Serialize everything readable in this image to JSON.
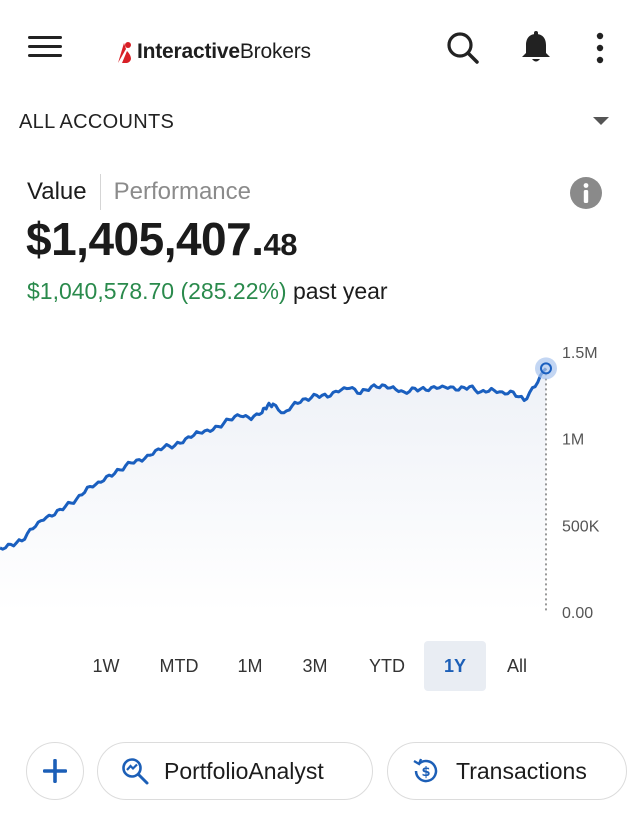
{
  "header": {
    "brand_bold": "Interactive",
    "brand_regular": "Brokers",
    "icons": [
      "menu-icon",
      "ib-logo-mark",
      "search-icon",
      "bell-icon",
      "kebab-menu-icon"
    ],
    "brand_color": "#d81f26"
  },
  "account_selector": {
    "label": "ALL ACCOUNTS"
  },
  "value_tabs": {
    "value": "Value",
    "performance": "Performance",
    "selected": "Value"
  },
  "portfolio": {
    "value_main": "$1,405,407.",
    "value_cents": "48",
    "change_text": "$1,040,578.70 (285.22%)",
    "change_suffix": "past year",
    "change_color": "#2a8a4c"
  },
  "chart_data": {
    "type": "area",
    "ylim": [
      0,
      1500000
    ],
    "y_tick_labels": [
      "1.5M",
      "1M",
      "500K",
      "0.00"
    ],
    "y_ticks": [
      1500000,
      1000000,
      500000,
      0
    ],
    "grid": false,
    "line_color": "#1a5fbf",
    "fill_color": "#eef1f7",
    "period": "1Y",
    "x_range": [
      0,
      100
    ],
    "series": [
      {
        "x": [
          0,
          2,
          4,
          6,
          8,
          10,
          12,
          14,
          16,
          18,
          20,
          22,
          24,
          26,
          28,
          30,
          32,
          34,
          36,
          38,
          40,
          42,
          44,
          46,
          48,
          49,
          50,
          52,
          54,
          56,
          58,
          60,
          62,
          64,
          66,
          68,
          70,
          72,
          74,
          76,
          78,
          80,
          82,
          84,
          86,
          88,
          90,
          92,
          94,
          96,
          98,
          100
        ],
        "values": [
          370000,
          390000,
          410000,
          480000,
          530000,
          560000,
          610000,
          650000,
          720000,
          750000,
          790000,
          820000,
          860000,
          870000,
          910000,
          950000,
          960000,
          1000000,
          1040000,
          1050000,
          1070000,
          1110000,
          1130000,
          1110000,
          1150000,
          1190000,
          1200000,
          1150000,
          1210000,
          1230000,
          1250000,
          1240000,
          1270000,
          1290000,
          1260000,
          1300000,
          1310000,
          1300000,
          1270000,
          1290000,
          1280000,
          1290000,
          1290000,
          1280000,
          1300000,
          1270000,
          1290000,
          1270000,
          1270000,
          1220000,
          1300000,
          1405407
        ]
      }
    ]
  },
  "range_tabs": [
    {
      "label": "1W",
      "active": false
    },
    {
      "label": "MTD",
      "active": false
    },
    {
      "label": "1M",
      "active": false
    },
    {
      "label": "3M",
      "active": false
    },
    {
      "label": "YTD",
      "active": false
    },
    {
      "label": "1Y",
      "active": true
    },
    {
      "label": "All",
      "active": false
    }
  ],
  "actions": {
    "add_icon": "plus-icon",
    "portfolio_analyst": "PortfolioAnalyst",
    "portfolio_icon": "magnify-chart-icon",
    "transactions": "Transactions",
    "transactions_icon": "dollar-history-icon"
  }
}
